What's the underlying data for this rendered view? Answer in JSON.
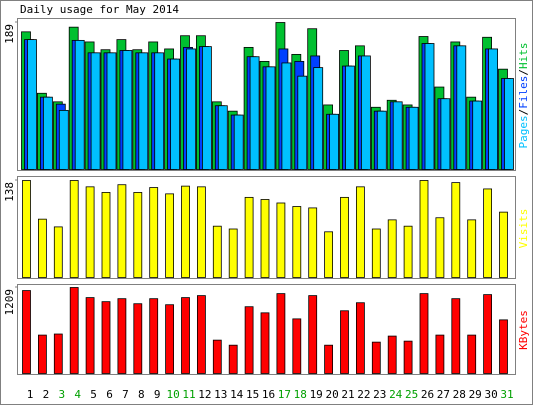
{
  "chart_data": {
    "type": "bar",
    "title": "Daily usage for May 2014",
    "categories": [
      "1",
      "2",
      "3",
      "4",
      "5",
      "6",
      "7",
      "8",
      "9",
      "10",
      "11",
      "12",
      "13",
      "14",
      "15",
      "16",
      "17",
      "18",
      "19",
      "20",
      "21",
      "22",
      "23",
      "24",
      "25",
      "26",
      "27",
      "28",
      "29",
      "30",
      "31"
    ],
    "category_colors": [
      "#000000",
      "#000000",
      "#00a000",
      "#00a000",
      "#000000",
      "#000000",
      "#000000",
      "#000000",
      "#000000",
      "#00a000",
      "#00a000",
      "#000000",
      "#000000",
      "#000000",
      "#000000",
      "#000000",
      "#00a000",
      "#00a000",
      "#000000",
      "#000000",
      "#000000",
      "#000000",
      "#000000",
      "#00a000",
      "#00a000",
      "#000000",
      "#000000",
      "#000000",
      "#000000",
      "#000000",
      "#00a000"
    ],
    "panels": [
      {
        "ylim": [
          0,
          189
        ],
        "yticks": [
          189
        ],
        "legend_separator": "/",
        "series": [
          {
            "name": "Hits",
            "color": "#00c030",
            "values": [
              177,
              98,
              87,
              183,
              164,
              154,
              167,
              154,
              164,
              155,
              172,
              172,
              87,
              75,
              157,
              139,
              189,
              148,
              181,
              83,
              153,
              159,
              80,
              89,
              83,
              171,
              106,
              164,
              93,
              170,
              129
            ]
          },
          {
            "name": "Files",
            "color": "#0040ff",
            "values": [
              167,
              93,
              84,
              166,
              150,
              150,
              153,
              150,
              150,
              142,
              157,
              158,
              82,
              70,
              145,
              132,
              155,
              139,
              146,
              71,
              133,
              146,
              75,
              87,
              80,
              162,
              91,
              159,
              88,
              155,
              117
            ]
          },
          {
            "name": "Pages",
            "color": "#00c0ff",
            "values": [
              167,
              93,
              76,
              166,
              150,
              150,
              153,
              150,
              150,
              142,
              155,
              158,
              82,
              70,
              145,
              132,
              137,
              120,
              131,
              71,
              133,
              146,
              75,
              87,
              80,
              162,
              91,
              159,
              88,
              155,
              117
            ]
          }
        ]
      },
      {
        "ylim": [
          0,
          138
        ],
        "yticks": [
          138
        ],
        "series": [
          {
            "name": "Visits",
            "color": "#ffff00",
            "values": [
              138,
              83,
              72,
              138,
              129,
              121,
              132,
              121,
              128,
              119,
              130,
              129,
              73,
              69,
              114,
              111,
              106,
              101,
              99,
              65,
              114,
              129,
              69,
              82,
              73,
              138,
              85,
              135,
              82,
              126,
              93
            ]
          }
        ]
      },
      {
        "ylim": [
          0,
          1209
        ],
        "yticks": [
          1209
        ],
        "series": [
          {
            "name": "KBytes",
            "color": "#ff0000",
            "values": [
              1166,
              540,
              555,
              1209,
              1067,
              1010,
              1052,
              981,
              1052,
              967,
              1067,
              1095,
              469,
              398,
              939,
              853,
              1123,
              768,
              1095,
              398,
              882,
              995,
              441,
              526,
              455,
              1123,
              540,
              1052,
              540,
              1109,
              754
            ]
          }
        ]
      }
    ]
  }
}
